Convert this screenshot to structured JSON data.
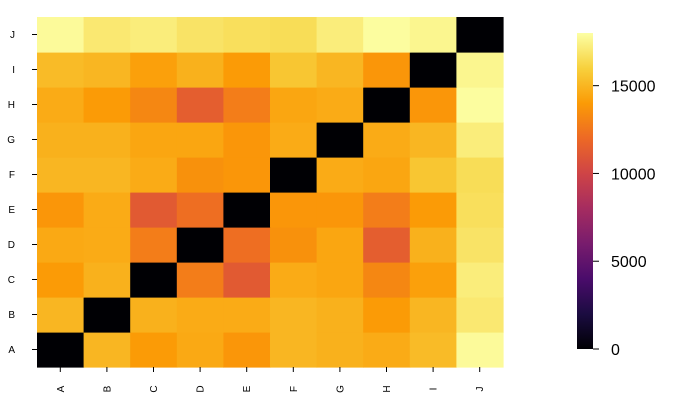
{
  "chart_data": {
    "type": "heatmap",
    "title": "",
    "xlabel": "",
    "ylabel": "",
    "x_labels": [
      "A",
      "B",
      "C",
      "D",
      "E",
      "F",
      "G",
      "H",
      "I",
      "J"
    ],
    "y_labels": [
      "A",
      "B",
      "C",
      "D",
      "E",
      "F",
      "G",
      "H",
      "I",
      "J"
    ],
    "values": [
      [
        0,
        15000,
        14000,
        14500,
        13800,
        15000,
        14800,
        14600,
        15200,
        17800
      ],
      [
        15000,
        0,
        14800,
        14600,
        14600,
        15000,
        14800,
        14000,
        15000,
        17000
      ],
      [
        14000,
        14800,
        0,
        12800,
        11200,
        14600,
        14400,
        13200,
        14200,
        17200
      ],
      [
        14500,
        14600,
        12800,
        0,
        12200,
        13600,
        14400,
        11400,
        14800,
        16800
      ],
      [
        13800,
        14600,
        11200,
        12200,
        0,
        13800,
        13800,
        12800,
        14000,
        16600
      ],
      [
        15000,
        15000,
        14600,
        13600,
        13800,
        0,
        14600,
        14400,
        15600,
        16500
      ],
      [
        14800,
        14800,
        14400,
        14400,
        13800,
        14600,
        0,
        14600,
        15000,
        17200
      ],
      [
        14600,
        14000,
        13200,
        11400,
        12800,
        14400,
        14600,
        0,
        13800,
        17900
      ],
      [
        15200,
        15000,
        14200,
        14800,
        14000,
        15600,
        15000,
        13800,
        0,
        17600
      ],
      [
        17800,
        17000,
        17200,
        16800,
        16600,
        16500,
        17200,
        17900,
        17600,
        0
      ]
    ],
    "colorbar": {
      "min": 0,
      "max": 18000,
      "ticks": [
        0,
        5000,
        10000,
        15000
      ],
      "tick_labels": [
        "0",
        "5000",
        "10000",
        "15000"
      ],
      "colors": [
        "#000004",
        "#1b0c41",
        "#4a0c6b",
        "#781c6d",
        "#a52c60",
        "#cf4446",
        "#ed6925",
        "#fb9b06",
        "#f7d13d",
        "#fcffa4"
      ]
    },
    "grid": false,
    "legend": "right"
  }
}
